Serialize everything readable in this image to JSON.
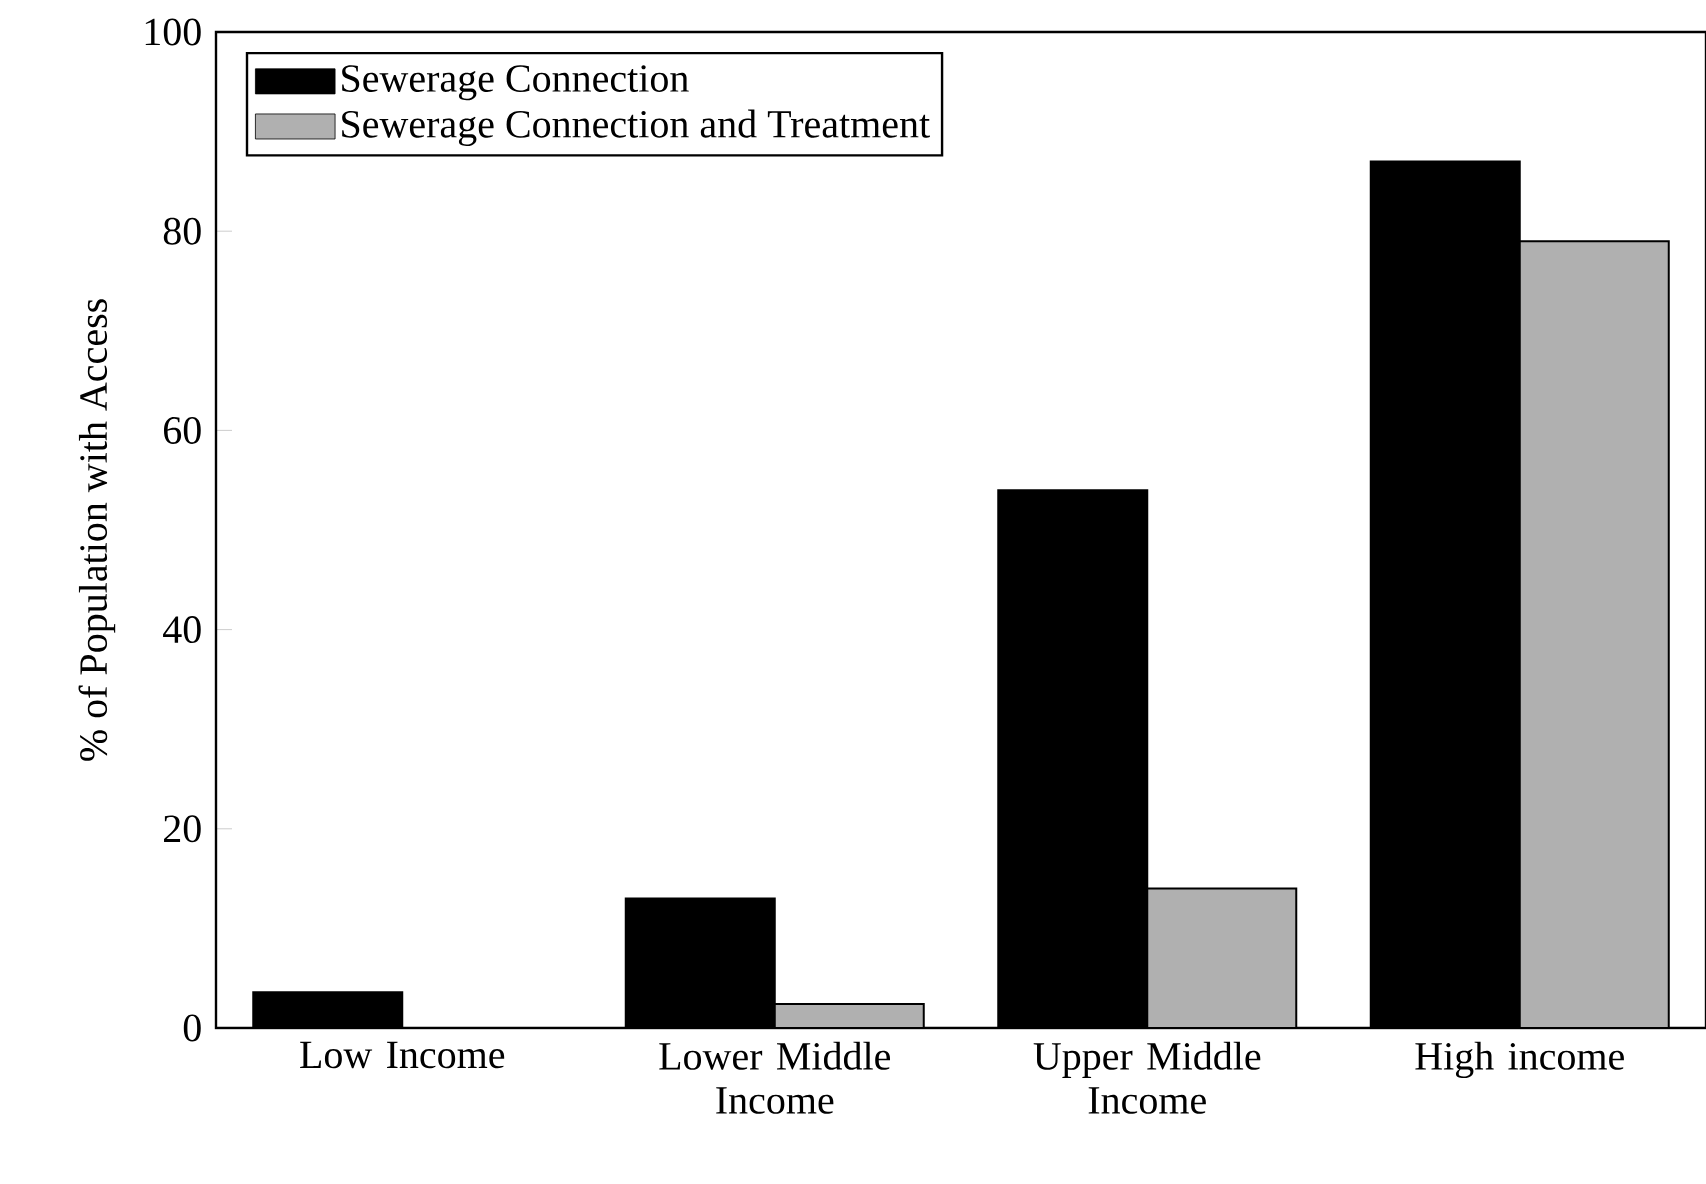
{
  "chart_data": {
    "type": "bar",
    "ylabel": "% of Population with Access",
    "categories": [
      "Low Income",
      "Lower Middle Income",
      "Upper Middle Income",
      "High income"
    ],
    "series": [
      {
        "name": "Sewerage Connection",
        "color": "#000000",
        "values": [
          3.6,
          13,
          54,
          87
        ]
      },
      {
        "name": "Sewerage Connection and Treatment",
        "color": "#b0b0b0",
        "values": [
          0,
          2.4,
          14,
          79
        ]
      }
    ],
    "ylim": [
      0,
      100
    ],
    "yticks": [
      0,
      20,
      40,
      60,
      80,
      100
    ],
    "grid": false,
    "legend": "top left"
  }
}
